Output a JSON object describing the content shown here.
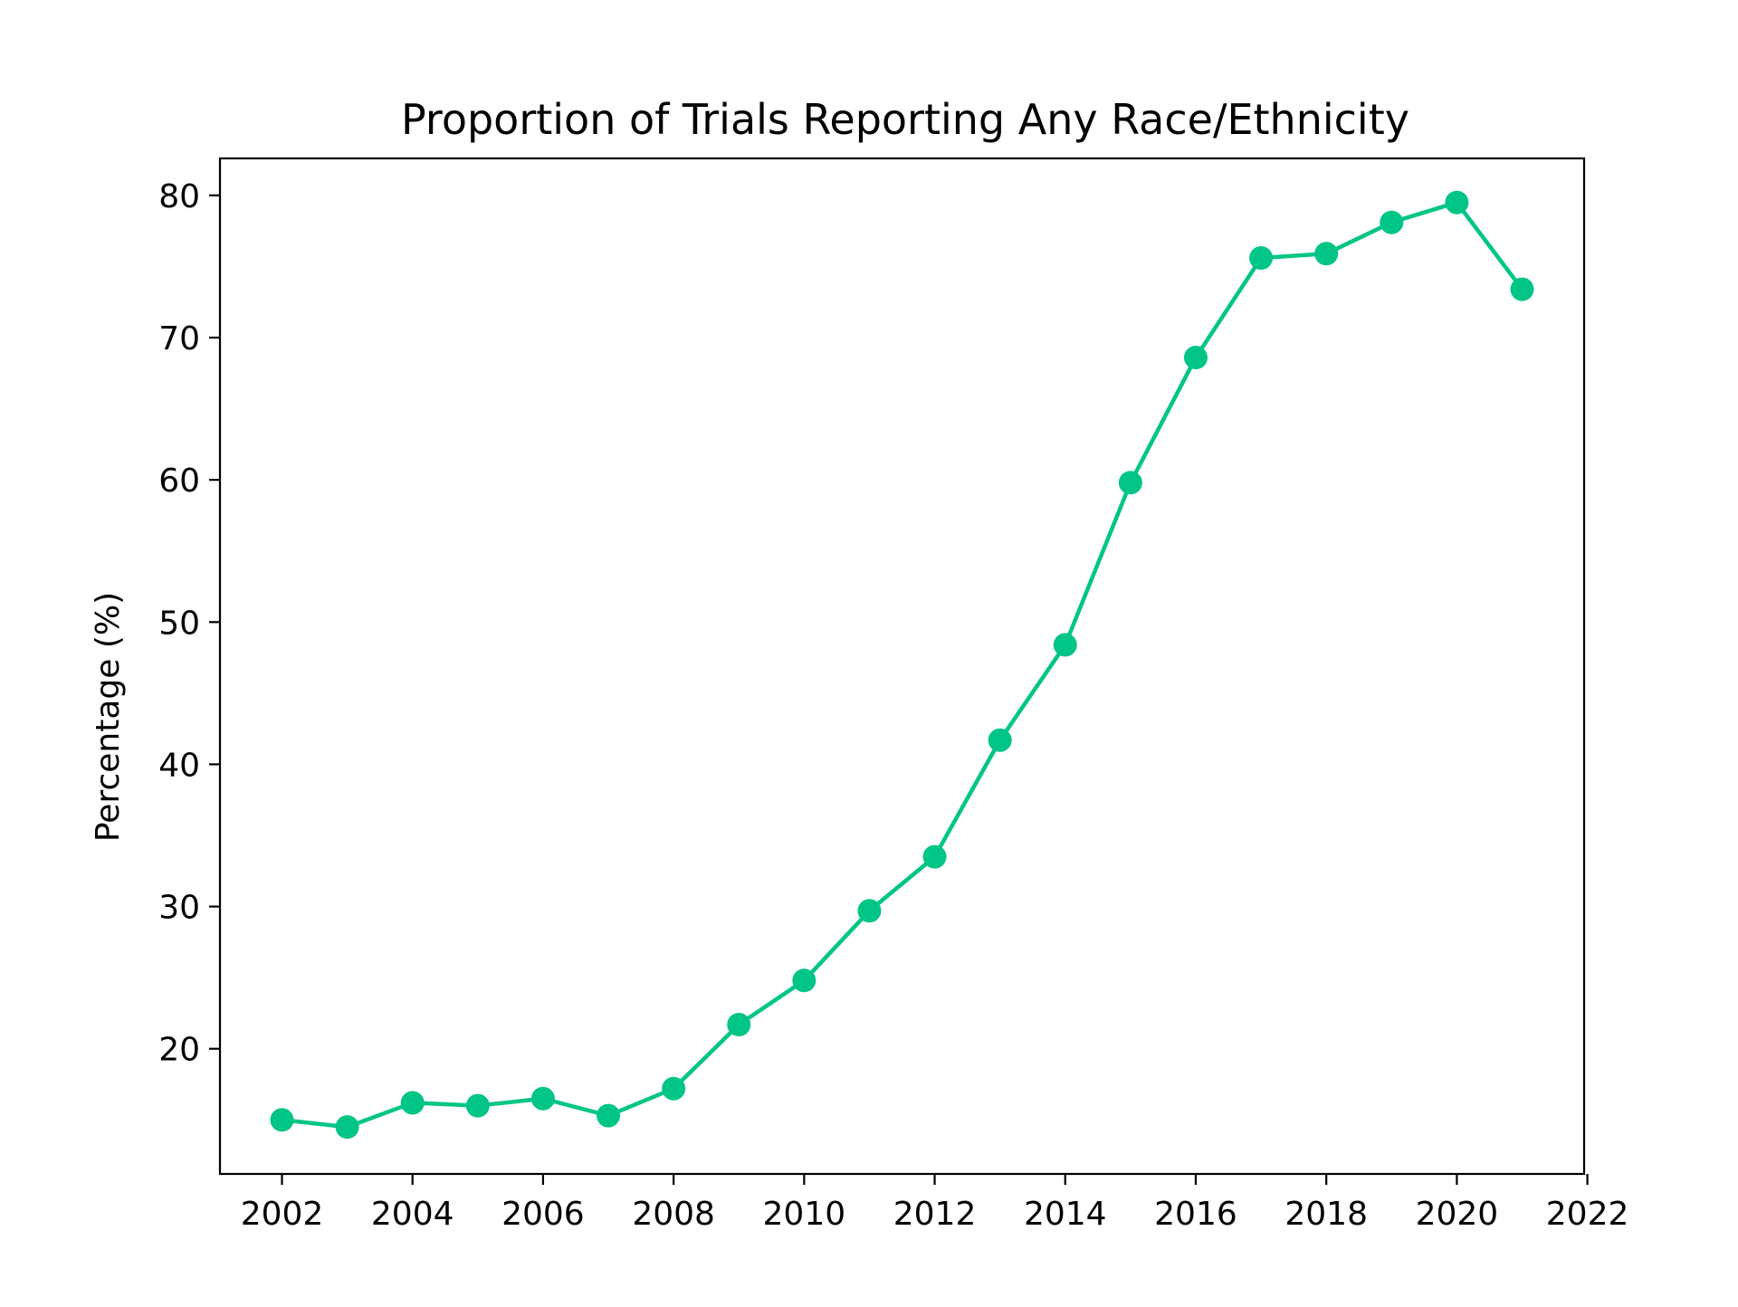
{
  "chart_data": {
    "type": "line",
    "title": "Proportion of Trials Reporting Any Race/Ethnicity",
    "xlabel": "",
    "ylabel": "Percentage (%)",
    "xlim": [
      2001.05,
      2021.95
    ],
    "ylim": [
      11.2,
      82.6
    ],
    "xticks": [
      2002,
      2004,
      2006,
      2008,
      2010,
      2012,
      2014,
      2016,
      2018,
      2020,
      2022
    ],
    "yticks": [
      20,
      30,
      40,
      50,
      60,
      70,
      80
    ],
    "grid": false,
    "series": [
      {
        "color": "#00c587",
        "marker": "circle",
        "points": [
          {
            "x": 2002,
            "y": 15.0
          },
          {
            "x": 2003,
            "y": 14.5
          },
          {
            "x": 2004,
            "y": 16.2
          },
          {
            "x": 2005,
            "y": 16.0
          },
          {
            "x": 2006,
            "y": 16.5
          },
          {
            "x": 2007,
            "y": 15.3
          },
          {
            "x": 2008,
            "y": 17.2
          },
          {
            "x": 2009,
            "y": 21.7
          },
          {
            "x": 2010,
            "y": 24.8
          },
          {
            "x": 2011,
            "y": 29.7
          },
          {
            "x": 2012,
            "y": 33.5
          },
          {
            "x": 2013,
            "y": 41.7
          },
          {
            "x": 2014,
            "y": 48.4
          },
          {
            "x": 2015,
            "y": 59.8
          },
          {
            "x": 2016,
            "y": 68.6
          },
          {
            "x": 2017,
            "y": 75.6
          },
          {
            "x": 2018,
            "y": 75.9
          },
          {
            "x": 2019,
            "y": 78.1
          },
          {
            "x": 2020,
            "y": 79.5
          },
          {
            "x": 2021,
            "y": 73.4
          }
        ]
      }
    ]
  }
}
